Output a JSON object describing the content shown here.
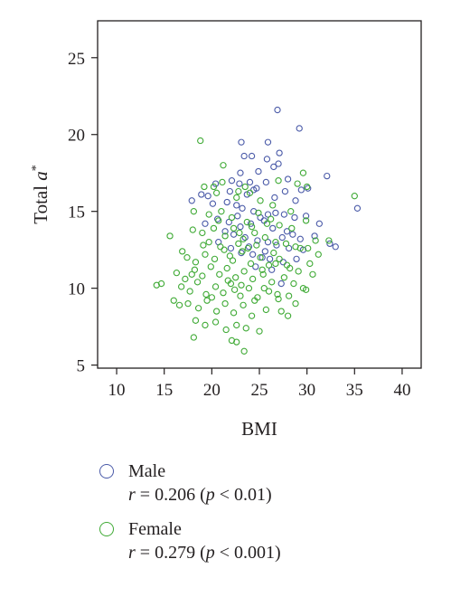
{
  "chart_data": {
    "type": "scatter",
    "xlabel": "BMI",
    "ylabel_main": "Total ",
    "ylabel_var": "a",
    "ylabel_sup": "*",
    "xlim": [
      8,
      42
    ],
    "ylim": [
      4.8,
      27.4
    ],
    "xticks": [
      10,
      15,
      20,
      25,
      30,
      35,
      40
    ],
    "yticks": [
      5,
      10,
      15,
      20,
      25
    ],
    "grid": false,
    "legend_position": "below",
    "series": [
      {
        "name": "Male",
        "color": "#4a5aa8",
        "stat": {
          "r_symbol": "r",
          "r_text": " = 0.206 (",
          "p_symbol": "p",
          "p_text": " < 0.01)"
        },
        "points": [
          [
            26.9,
            21.6
          ],
          [
            29.2,
            20.4
          ],
          [
            23.1,
            19.5
          ],
          [
            25.9,
            19.5
          ],
          [
            27.1,
            18.8
          ],
          [
            23.4,
            18.6
          ],
          [
            24.2,
            18.6
          ],
          [
            25.8,
            18.4
          ],
          [
            27.0,
            18.1
          ],
          [
            26.5,
            17.9
          ],
          [
            23.0,
            17.5
          ],
          [
            24.9,
            17.6
          ],
          [
            28.0,
            17.1
          ],
          [
            32.1,
            17.3
          ],
          [
            22.1,
            17.0
          ],
          [
            22.9,
            16.8
          ],
          [
            24.4,
            16.4
          ],
          [
            25.7,
            16.9
          ],
          [
            30.1,
            16.5
          ],
          [
            18.9,
            16.1
          ],
          [
            19.6,
            16.0
          ],
          [
            21.9,
            16.3
          ],
          [
            23.7,
            16.1
          ],
          [
            24.7,
            16.5
          ],
          [
            26.6,
            15.9
          ],
          [
            29.4,
            16.4
          ],
          [
            17.9,
            15.7
          ],
          [
            20.1,
            15.5
          ],
          [
            21.6,
            15.6
          ],
          [
            22.6,
            15.4
          ],
          [
            23.2,
            15.2
          ],
          [
            24.4,
            15.0
          ],
          [
            25.9,
            14.8
          ],
          [
            27.6,
            14.8
          ],
          [
            28.7,
            14.6
          ],
          [
            29.9,
            14.7
          ],
          [
            31.3,
            14.2
          ],
          [
            19.3,
            14.2
          ],
          [
            20.6,
            14.5
          ],
          [
            21.8,
            14.3
          ],
          [
            23.0,
            14.0
          ],
          [
            24.1,
            14.2
          ],
          [
            25.5,
            14.4
          ],
          [
            26.4,
            13.9
          ],
          [
            27.9,
            13.7
          ],
          [
            28.5,
            13.5
          ],
          [
            29.3,
            13.2
          ],
          [
            30.8,
            13.4
          ],
          [
            21.4,
            13.7
          ],
          [
            22.3,
            13.5
          ],
          [
            23.5,
            13.3
          ],
          [
            24.8,
            13.1
          ],
          [
            25.9,
            13.0
          ],
          [
            26.8,
            12.8
          ],
          [
            27.4,
            13.3
          ],
          [
            28.1,
            12.6
          ],
          [
            29.6,
            12.5
          ],
          [
            32.4,
            12.9
          ],
          [
            33.0,
            12.7
          ],
          [
            35.3,
            15.2
          ],
          [
            22.0,
            12.6
          ],
          [
            23.1,
            12.3
          ],
          [
            24.3,
            12.2
          ],
          [
            25.6,
            12.4
          ],
          [
            26.1,
            11.9
          ],
          [
            27.5,
            11.7
          ],
          [
            28.9,
            11.9
          ],
          [
            24.6,
            11.4
          ],
          [
            26.3,
            11.2
          ],
          [
            27.3,
            10.3
          ],
          [
            20.7,
            13.0
          ],
          [
            23.9,
            12.7
          ],
          [
            25.1,
            14.6
          ],
          [
            26.7,
            14.9
          ],
          [
            22.7,
            14.7
          ],
          [
            27.7,
            16.3
          ],
          [
            20.4,
            16.8
          ],
          [
            24.0,
            16.9
          ],
          [
            28.8,
            15.7
          ],
          [
            25.3,
            12.0
          ]
        ]
      },
      {
        "name": "Female",
        "color": "#3faa35",
        "stat": {
          "r_symbol": "r",
          "r_text": " = 0.279 (",
          "p_symbol": "p",
          "p_text": " < 0.001)"
        },
        "points": [
          [
            18.8,
            19.6
          ],
          [
            21.2,
            18.0
          ],
          [
            20.2,
            16.6
          ],
          [
            23.5,
            16.6
          ],
          [
            27.0,
            17.0
          ],
          [
            29.6,
            17.5
          ],
          [
            30.0,
            16.6
          ],
          [
            35.0,
            16.0
          ],
          [
            19.2,
            16.6
          ],
          [
            20.5,
            16.2
          ],
          [
            22.6,
            15.9
          ],
          [
            24.0,
            16.2
          ],
          [
            25.1,
            15.7
          ],
          [
            26.4,
            15.4
          ],
          [
            28.3,
            15.0
          ],
          [
            29.0,
            16.8
          ],
          [
            18.1,
            15.0
          ],
          [
            19.7,
            14.8
          ],
          [
            21.0,
            15.0
          ],
          [
            22.1,
            14.6
          ],
          [
            23.7,
            14.3
          ],
          [
            24.9,
            14.9
          ],
          [
            26.2,
            14.5
          ],
          [
            27.1,
            14.1
          ],
          [
            28.4,
            13.9
          ],
          [
            29.9,
            14.4
          ],
          [
            30.9,
            13.1
          ],
          [
            32.3,
            13.1
          ],
          [
            15.6,
            13.4
          ],
          [
            16.9,
            12.4
          ],
          [
            18.0,
            13.8
          ],
          [
            19.0,
            13.6
          ],
          [
            20.2,
            13.9
          ],
          [
            21.4,
            13.4
          ],
          [
            22.3,
            13.9
          ],
          [
            23.3,
            13.2
          ],
          [
            24.5,
            13.6
          ],
          [
            25.6,
            13.3
          ],
          [
            26.7,
            13.0
          ],
          [
            27.8,
            12.9
          ],
          [
            28.8,
            12.7
          ],
          [
            30.1,
            12.6
          ],
          [
            31.2,
            12.2
          ],
          [
            17.4,
            12.0
          ],
          [
            18.3,
            11.7
          ],
          [
            19.3,
            12.2
          ],
          [
            20.3,
            11.9
          ],
          [
            21.3,
            12.5
          ],
          [
            22.2,
            11.8
          ],
          [
            23.2,
            12.4
          ],
          [
            24.1,
            11.6
          ],
          [
            25.1,
            12.0
          ],
          [
            26.0,
            11.5
          ],
          [
            27.1,
            11.9
          ],
          [
            28.2,
            11.3
          ],
          [
            29.1,
            11.1
          ],
          [
            30.3,
            11.6
          ],
          [
            16.3,
            11.0
          ],
          [
            17.2,
            10.6
          ],
          [
            18.2,
            11.2
          ],
          [
            19.0,
            10.8
          ],
          [
            19.9,
            11.4
          ],
          [
            20.8,
            10.9
          ],
          [
            21.6,
            11.3
          ],
          [
            22.5,
            10.7
          ],
          [
            23.4,
            11.1
          ],
          [
            24.3,
            10.6
          ],
          [
            25.4,
            10.9
          ],
          [
            26.3,
            10.4
          ],
          [
            27.6,
            10.7
          ],
          [
            28.6,
            10.3
          ],
          [
            29.6,
            10.0
          ],
          [
            14.2,
            10.2
          ],
          [
            14.7,
            10.3
          ],
          [
            16.8,
            10.1
          ],
          [
            17.7,
            9.8
          ],
          [
            18.5,
            10.4
          ],
          [
            19.4,
            9.6
          ],
          [
            20.4,
            10.1
          ],
          [
            21.2,
            9.7
          ],
          [
            22.0,
            10.3
          ],
          [
            23.0,
            9.5
          ],
          [
            23.9,
            10.0
          ],
          [
            24.8,
            9.4
          ],
          [
            26.0,
            9.8
          ],
          [
            27.0,
            9.3
          ],
          [
            28.1,
            9.5
          ],
          [
            29.9,
            9.9
          ],
          [
            16.0,
            9.2
          ],
          [
            16.6,
            8.9
          ],
          [
            17.5,
            9.0
          ],
          [
            18.6,
            8.7
          ],
          [
            19.5,
            9.2
          ],
          [
            20.5,
            8.5
          ],
          [
            21.4,
            9.0
          ],
          [
            22.3,
            8.4
          ],
          [
            23.3,
            8.9
          ],
          [
            24.2,
            8.2
          ],
          [
            25.7,
            8.6
          ],
          [
            27.3,
            8.5
          ],
          [
            28.0,
            8.2
          ],
          [
            18.3,
            7.9
          ],
          [
            19.3,
            7.6
          ],
          [
            20.4,
            7.8
          ],
          [
            21.5,
            7.3
          ],
          [
            22.6,
            7.6
          ],
          [
            23.6,
            7.4
          ],
          [
            25.0,
            7.2
          ],
          [
            18.1,
            6.8
          ],
          [
            22.1,
            6.6
          ],
          [
            22.6,
            6.5
          ],
          [
            23.4,
            5.9
          ],
          [
            20.9,
            12.7
          ],
          [
            21.9,
            12.1
          ],
          [
            22.8,
            12.9
          ],
          [
            23.8,
            12.6
          ],
          [
            24.7,
            12.8
          ],
          [
            26.5,
            12.3
          ],
          [
            25.3,
            11.2
          ],
          [
            20.7,
            14.4
          ],
          [
            19.7,
            13.0
          ],
          [
            21.7,
            10.5
          ],
          [
            23.1,
            10.2
          ],
          [
            24.5,
            9.2
          ],
          [
            26.7,
            11.6
          ],
          [
            27.9,
            11.5
          ],
          [
            29.3,
            12.6
          ],
          [
            22.9,
            13.6
          ],
          [
            24.2,
            14.0
          ],
          [
            25.8,
            14.2
          ],
          [
            21.1,
            16.9
          ],
          [
            22.8,
            16.3
          ],
          [
            19.1,
            12.8
          ],
          [
            17.9,
            10.9
          ],
          [
            20.0,
            9.4
          ],
          [
            22.4,
            9.9
          ],
          [
            25.5,
            10.0
          ],
          [
            26.9,
            9.6
          ],
          [
            28.8,
            9.0
          ],
          [
            30.6,
            10.9
          ]
        ]
      }
    ]
  }
}
